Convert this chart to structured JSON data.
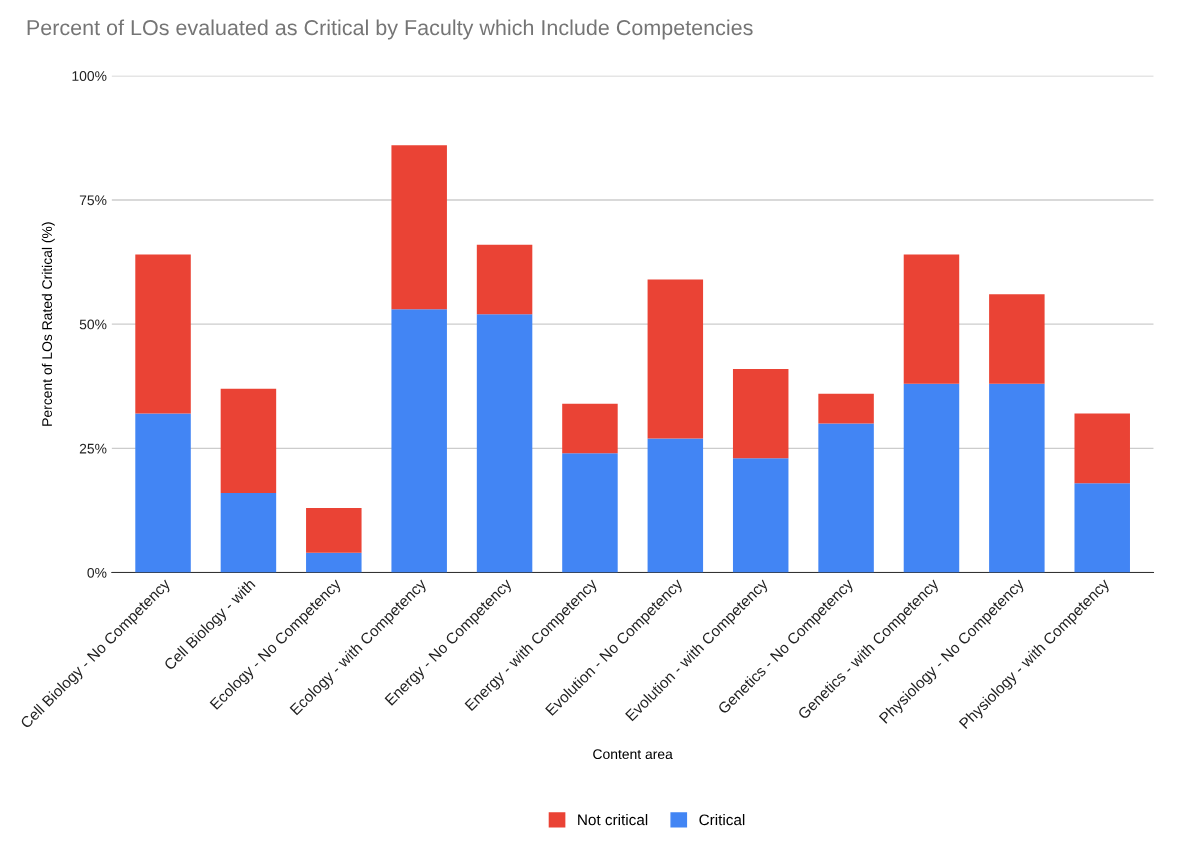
{
  "chart_data": {
    "type": "bar",
    "stacked": true,
    "title": "Percent of LOs evaluated as Critical by Faculty which Include Competencies",
    "xlabel": "Content area",
    "ylabel": "Percent of LOs Rated Critical (%)",
    "categories": [
      "Cell Biology - No Competency",
      "Cell Biology - with",
      "Ecology - No Competency",
      "Ecology - with Competency",
      "Energy - No Competency",
      "Energy - with Competency",
      "Evolution - No Competency",
      "Evolution - with Competency",
      "Genetics - No Competency",
      "Genetics - with Competency",
      "Physiology - No Competency",
      "Physiology - with Competency"
    ],
    "series": [
      {
        "name": "Critical",
        "color": "#4285f4",
        "values": [
          32,
          16,
          4,
          53,
          52,
          24,
          27,
          23,
          30,
          38,
          38,
          18
        ]
      },
      {
        "name": "Not critical",
        "color": "#ea4335",
        "values": [
          32,
          21,
          9,
          33,
          14,
          10,
          32,
          18,
          6,
          26,
          18,
          14
        ]
      }
    ],
    "ylim": [
      0,
      100
    ],
    "yticks": [
      {
        "value": 0,
        "label": "0%"
      },
      {
        "value": 25,
        "label": "25%"
      },
      {
        "value": 50,
        "label": "50%"
      },
      {
        "value": 75,
        "label": "75%"
      },
      {
        "value": 100,
        "label": "100%"
      }
    ],
    "grid": "y",
    "legend": "bottom"
  }
}
